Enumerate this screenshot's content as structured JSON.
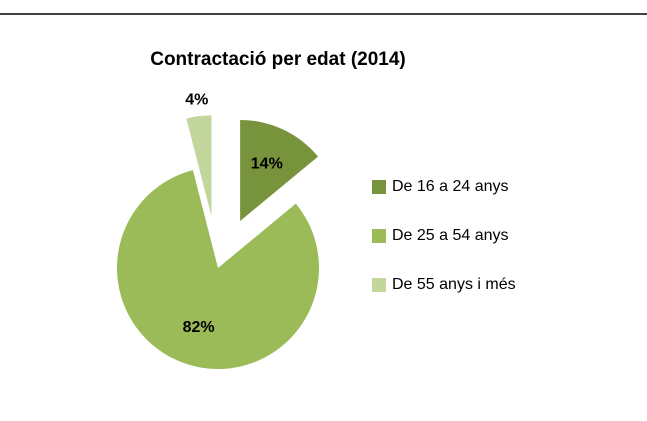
{
  "chart_data": {
    "type": "pie",
    "title": "Contractació per edat (2014)",
    "categories": [
      "De 16 a 24 anys",
      "De 25 a 54 anys",
      "De 55 anys i més"
    ],
    "values": [
      14,
      82,
      4
    ],
    "value_labels": [
      "14%",
      "82%",
      "4%"
    ],
    "colors": [
      "#77933c",
      "#9bbb59",
      "#c3d69b"
    ],
    "legend": "right"
  }
}
